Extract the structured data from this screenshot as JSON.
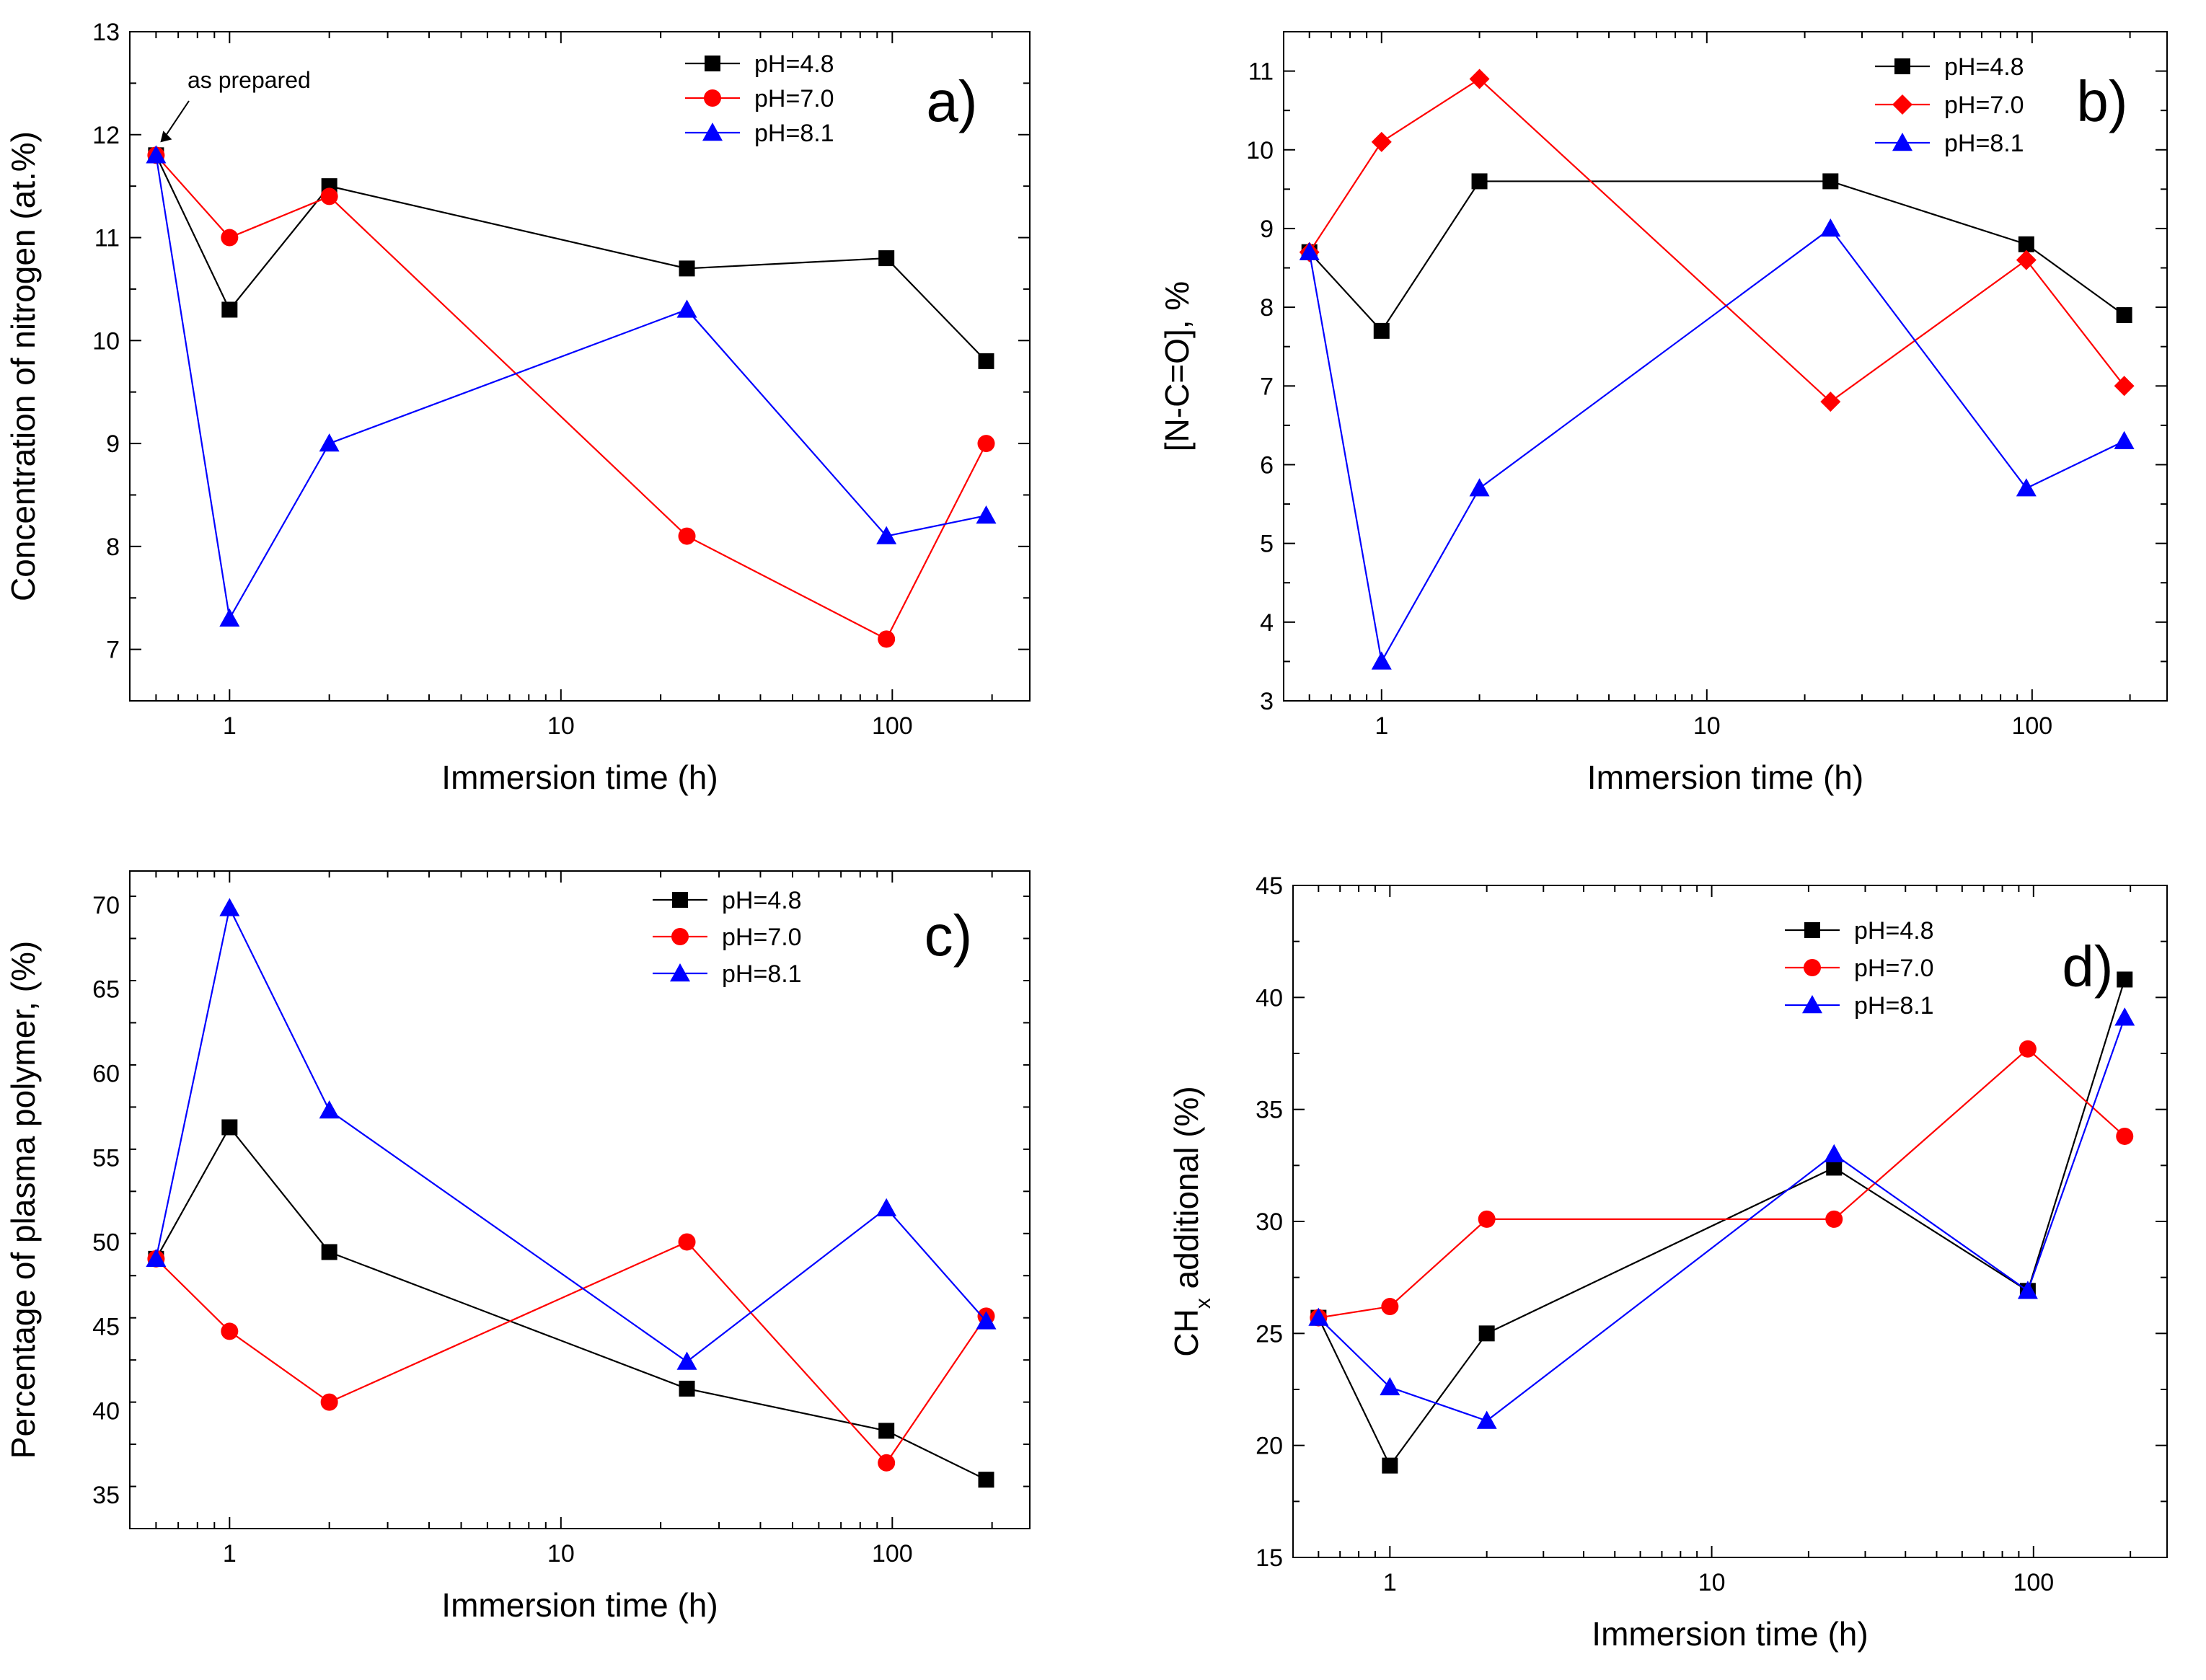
{
  "figure": {
    "colors": {
      "pH=4.8": "#000000",
      "pH=7.0": "#ff0000",
      "pH=8.1": "#0000ff"
    }
  },
  "chart_data": [
    {
      "id": "a",
      "panel_label": "a)",
      "type": "line",
      "title": "",
      "xlabel": "Immersion time (h)",
      "ylabel": "Concentration of nitrogen (at.%)",
      "xscale": "log",
      "xlim": [
        0.5,
        260
      ],
      "ylim": [
        6.5,
        13
      ],
      "yticks": [
        7,
        8,
        9,
        10,
        11,
        12,
        13
      ],
      "xticks": [
        1,
        10,
        100
      ],
      "xtick_labels": [
        "1",
        "10",
        "100"
      ],
      "legend_position": "top-center",
      "annotation": "as prepared",
      "x": [
        0.6,
        1,
        2,
        24,
        96,
        192
      ],
      "series": [
        {
          "name": "pH=4.8",
          "marker": "square",
          "values": [
            11.8,
            10.3,
            11.5,
            10.7,
            10.8,
            9.8
          ]
        },
        {
          "name": "pH=7.0",
          "marker": "circle",
          "values": [
            11.8,
            11.0,
            11.4,
            8.1,
            7.1,
            9.0
          ]
        },
        {
          "name": "pH=8.1",
          "marker": "triangle",
          "values": [
            11.8,
            7.3,
            9.0,
            10.3,
            8.1,
            8.3
          ]
        }
      ]
    },
    {
      "id": "b",
      "panel_label": "b)",
      "type": "line",
      "title": "",
      "xlabel": "Immersion time (h)",
      "ylabel": "[N-C=O], %",
      "xscale": "log",
      "xlim": [
        0.5,
        260
      ],
      "ylim": [
        3,
        11.5
      ],
      "yticks": [
        3,
        4,
        5,
        6,
        7,
        8,
        9,
        10,
        11
      ],
      "xticks": [
        1,
        10,
        100
      ],
      "xtick_labels": [
        "1",
        "10",
        "100"
      ],
      "legend_position": "top-right",
      "x": [
        0.6,
        1,
        2,
        24,
        96,
        192
      ],
      "series": [
        {
          "name": "pH=4.8",
          "marker": "square",
          "values": [
            8.7,
            7.7,
            9.6,
            9.6,
            8.8,
            7.9
          ]
        },
        {
          "name": "pH=7.0",
          "marker": "diamond",
          "values": [
            8.7,
            10.1,
            10.9,
            6.8,
            8.6,
            7.0
          ]
        },
        {
          "name": "pH=8.1",
          "marker": "triangle",
          "values": [
            8.7,
            3.5,
            5.7,
            9.0,
            5.7,
            6.3
          ]
        }
      ]
    },
    {
      "id": "c",
      "panel_label": "c)",
      "type": "line",
      "title": "",
      "xlabel": "Immersion time (h)",
      "ylabel": "Percentage of plasma polymer, (%)",
      "xscale": "log",
      "xlim": [
        0.5,
        260
      ],
      "ylim": [
        33,
        72
      ],
      "yticks": [
        35,
        40,
        45,
        50,
        55,
        60,
        65,
        70
      ],
      "xticks": [
        1,
        10,
        100
      ],
      "xtick_labels": [
        "1",
        "10",
        "100"
      ],
      "legend_position": "top-center",
      "x": [
        0.6,
        1,
        2,
        24,
        96,
        192
      ],
      "series": [
        {
          "name": "pH=4.8",
          "marker": "square",
          "values": [
            49.0,
            56.8,
            49.4,
            41.3,
            38.8,
            35.9
          ]
        },
        {
          "name": "pH=7.0",
          "marker": "circle",
          "values": [
            49.0,
            44.7,
            40.5,
            50.0,
            36.9,
            45.6
          ]
        },
        {
          "name": "pH=8.1",
          "marker": "triangle",
          "values": [
            49.0,
            69.8,
            57.8,
            42.9,
            52.0,
            45.3
          ]
        }
      ]
    },
    {
      "id": "d",
      "panel_label": "d)",
      "type": "line",
      "title": "",
      "xlabel": "Immersion time (h)",
      "ylabel_main": "CH",
      "ylabel_sub": "x",
      "ylabel_rest": " additional (%)",
      "xscale": "log",
      "xlim": [
        0.5,
        260
      ],
      "ylim": [
        15,
        45
      ],
      "yticks": [
        15,
        20,
        25,
        30,
        35,
        40,
        45
      ],
      "xticks": [
        1,
        10,
        100
      ],
      "xtick_labels": [
        "1",
        "10",
        "100"
      ],
      "legend_position": "top-center",
      "x": [
        0.6,
        1,
        2,
        24,
        96,
        192
      ],
      "series": [
        {
          "name": "pH=4.8",
          "marker": "square",
          "values": [
            25.7,
            19.1,
            25.0,
            32.4,
            26.9,
            40.8
          ]
        },
        {
          "name": "pH=7.0",
          "marker": "circle",
          "values": [
            25.7,
            26.2,
            30.1,
            30.1,
            37.7,
            33.8
          ]
        },
        {
          "name": "pH=8.1",
          "marker": "triangle",
          "values": [
            25.7,
            22.6,
            21.1,
            33.0,
            26.9,
            39.1
          ]
        }
      ]
    }
  ]
}
